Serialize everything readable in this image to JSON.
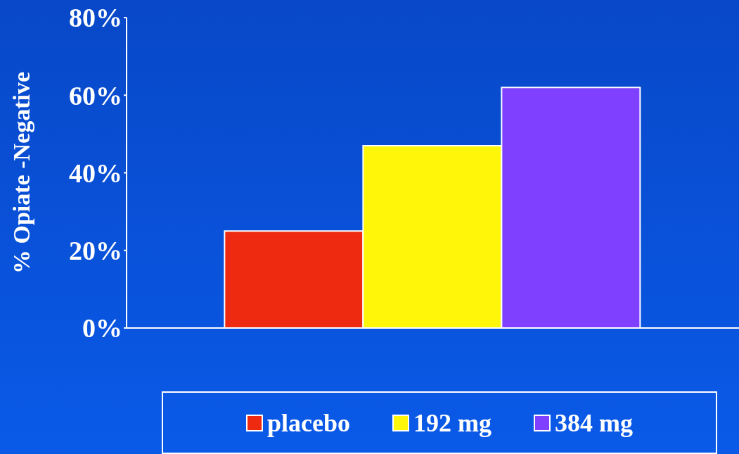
{
  "chart_data": {
    "type": "bar",
    "ylabel": "% Opiate -Negative",
    "categories": [
      null
    ],
    "series": [
      {
        "name": "placebo",
        "color": "#ee2a10",
        "values": [
          25
        ]
      },
      {
        "name": "192 mg",
        "color": "#fff60a",
        "values": [
          47
        ]
      },
      {
        "name": "384 mg",
        "color": "#8040ff",
        "values": [
          62
        ]
      }
    ],
    "ylim": [
      0,
      80
    ],
    "yticks": [
      {
        "value": 0,
        "label": "0%"
      },
      {
        "value": 20,
        "label": "20%"
      },
      {
        "value": 40,
        "label": "40%"
      },
      {
        "value": 60,
        "label": "60%"
      },
      {
        "value": 80,
        "label": "80%"
      }
    ],
    "grid": false,
    "legend": "bottom",
    "tick_labels": "y"
  }
}
